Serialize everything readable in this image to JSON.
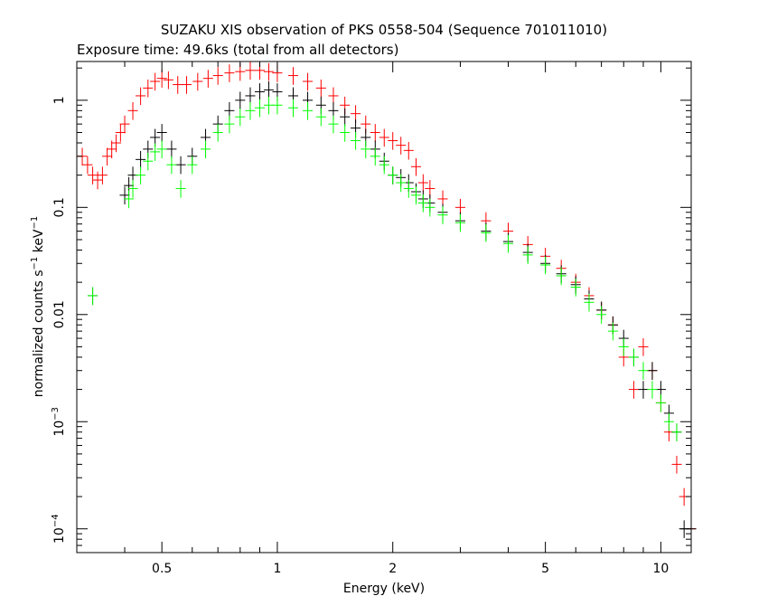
{
  "chart_data": {
    "type": "scatter",
    "title": "SUZAKU XIS observation of PKS 0558-504 (Sequence 701011010)",
    "subtitle": "Exposure time: 49.6ks (total from all detectors)",
    "xlabel": "Energy (keV)",
    "ylabel": {
      "prefix": "normalized counts s",
      "exp1": "−1",
      "middle": " keV",
      "exp2": "−1"
    },
    "xscale": "log",
    "yscale": "log",
    "xlim": [
      0.3,
      12
    ],
    "ylim": [
      6e-05,
      2.3
    ],
    "x_ticks": [
      {
        "value": 0.5,
        "label": "0.5"
      },
      {
        "value": 1,
        "label": "1"
      },
      {
        "value": 2,
        "label": "2"
      },
      {
        "value": 5,
        "label": "5"
      },
      {
        "value": 10,
        "label": "10"
      }
    ],
    "y_ticks": [
      {
        "value": 1,
        "label": "1",
        "sup": ""
      },
      {
        "value": 0.1,
        "label": "0.1",
        "sup": ""
      },
      {
        "value": 0.01,
        "label": "0.01",
        "sup": ""
      },
      {
        "value": 0.001,
        "label": "10",
        "sup": "−3"
      },
      {
        "value": 0.0001,
        "label": "10",
        "sup": "−4"
      }
    ],
    "grid": false,
    "legend": "none",
    "series": [
      {
        "color": "#ff0000",
        "x": [
          0.31,
          0.32,
          0.33,
          0.34,
          0.35,
          0.36,
          0.37,
          0.38,
          0.39,
          0.4,
          0.42,
          0.44,
          0.46,
          0.48,
          0.5,
          0.52,
          0.55,
          0.58,
          0.62,
          0.66,
          0.7,
          0.75,
          0.8,
          0.85,
          0.9,
          0.95,
          1.0,
          1.1,
          1.2,
          1.3,
          1.4,
          1.5,
          1.6,
          1.7,
          1.8,
          1.9,
          2.0,
          2.1,
          2.2,
          2.3,
          2.4,
          2.5,
          2.7,
          3.0,
          3.5,
          4.0,
          4.5,
          5.0,
          5.5,
          6.0,
          6.5,
          7.0,
          7.5,
          8.0,
          8.5,
          9.0,
          9.5,
          10.0,
          10.5,
          11.0,
          11.5,
          12.0
        ],
        "y": [
          0.3,
          0.25,
          0.2,
          0.18,
          0.2,
          0.3,
          0.35,
          0.4,
          0.5,
          0.6,
          0.8,
          1.1,
          1.3,
          1.5,
          1.6,
          1.55,
          1.4,
          1.4,
          1.5,
          1.6,
          1.7,
          1.8,
          1.85,
          1.9,
          1.9,
          1.85,
          1.8,
          1.7,
          1.5,
          1.3,
          1.1,
          0.9,
          0.75,
          0.6,
          0.5,
          0.45,
          0.42,
          0.38,
          0.34,
          0.24,
          0.17,
          0.15,
          0.12,
          0.1,
          0.075,
          0.06,
          0.045,
          0.035,
          0.027,
          0.02,
          0.015,
          0.011,
          0.008,
          0.004,
          0.002,
          0.005,
          0.003,
          0.0015,
          0.0008,
          0.0004,
          0.0002,
          0.0001
        ]
      },
      {
        "color": "#000000",
        "x": [
          0.33,
          0.4,
          0.41,
          0.42,
          0.44,
          0.46,
          0.48,
          0.5,
          0.53,
          0.56,
          0.6,
          0.65,
          0.7,
          0.75,
          0.8,
          0.85,
          0.9,
          0.95,
          1.0,
          1.1,
          1.2,
          1.3,
          1.4,
          1.5,
          1.6,
          1.7,
          1.8,
          1.9,
          2.0,
          2.1,
          2.2,
          2.3,
          2.4,
          2.5,
          2.7,
          3.0,
          3.5,
          4.0,
          4.5,
          5.0,
          5.5,
          6.0,
          6.5,
          7.0,
          7.5,
          8.0,
          8.5,
          9.0,
          9.5,
          10.0,
          10.5,
          11.0,
          11.5,
          12.0
        ],
        "y": [
          0.015,
          0.13,
          0.16,
          0.2,
          0.28,
          0.35,
          0.45,
          0.5,
          0.35,
          0.25,
          0.3,
          0.45,
          0.6,
          0.8,
          1.0,
          1.1,
          1.2,
          1.25,
          1.2,
          1.1,
          1.0,
          0.9,
          0.8,
          0.7,
          0.55,
          0.45,
          0.35,
          0.27,
          0.2,
          0.19,
          0.17,
          0.14,
          0.12,
          0.11,
          0.09,
          0.075,
          0.06,
          0.048,
          0.038,
          0.03,
          0.024,
          0.019,
          0.014,
          0.011,
          0.008,
          0.006,
          0.004,
          0.002,
          0.003,
          0.002,
          0.0012,
          0.0008,
          0.0001,
          0.0001
        ]
      },
      {
        "color": "#00ff00",
        "x": [
          0.33,
          0.41,
          0.42,
          0.44,
          0.46,
          0.48,
          0.5,
          0.53,
          0.56,
          0.6,
          0.65,
          0.7,
          0.75,
          0.8,
          0.85,
          0.9,
          0.95,
          1.0,
          1.1,
          1.2,
          1.3,
          1.4,
          1.5,
          1.6,
          1.7,
          1.8,
          1.9,
          2.0,
          2.1,
          2.2,
          2.3,
          2.4,
          2.5,
          2.7,
          3.0,
          3.5,
          4.0,
          4.5,
          5.0,
          5.5,
          6.0,
          6.5,
          7.0,
          7.5,
          8.0,
          8.5,
          9.0,
          9.5,
          10.0,
          10.5,
          11.0
        ],
        "y": [
          0.015,
          0.12,
          0.15,
          0.2,
          0.27,
          0.33,
          0.35,
          0.25,
          0.15,
          0.25,
          0.35,
          0.5,
          0.6,
          0.7,
          0.8,
          0.85,
          0.9,
          0.9,
          0.85,
          0.8,
          0.7,
          0.6,
          0.5,
          0.42,
          0.35,
          0.3,
          0.25,
          0.2,
          0.17,
          0.15,
          0.13,
          0.11,
          0.1,
          0.085,
          0.072,
          0.058,
          0.046,
          0.036,
          0.029,
          0.023,
          0.018,
          0.013,
          0.01,
          0.007,
          0.005,
          0.004,
          0.003,
          0.002,
          0.0015,
          0.001,
          0.0008
        ]
      }
    ]
  }
}
